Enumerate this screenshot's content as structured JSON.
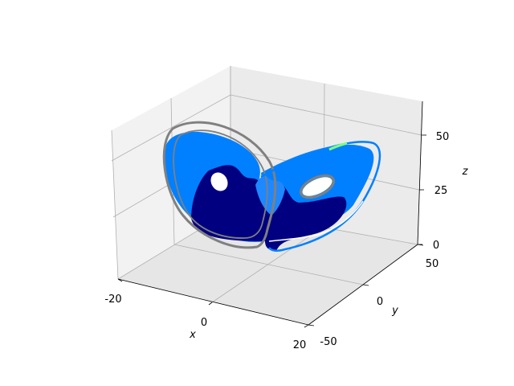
{
  "chart_data": {
    "type": "line",
    "projection": "3d",
    "xlabel": "x",
    "ylabel": "y",
    "zlabel": "z",
    "xlim": [
      -20,
      20
    ],
    "ylim": [
      -50,
      50
    ],
    "zlim": [
      0,
      60
    ],
    "x_ticks": [
      "-20",
      "0",
      "20"
    ],
    "y_ticks": [
      "-50",
      "0",
      "50"
    ],
    "z_ticks": [
      "0",
      "25",
      "50"
    ],
    "grid": true,
    "legend": "none",
    "pane_colors": [
      "#f2f2f2",
      "#ebebeb",
      "#e6e6e6"
    ],
    "series": [
      {
        "color": "#000080"
      },
      {
        "color": "#0080ff"
      },
      {
        "color": "#808080"
      },
      {
        "color": "#7fff7f"
      }
    ]
  }
}
